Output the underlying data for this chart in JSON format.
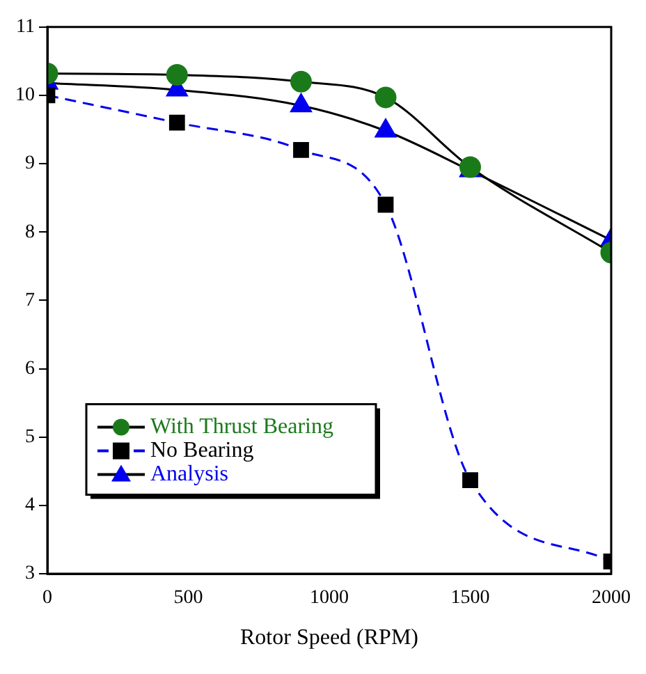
{
  "chart_data": {
    "type": "line",
    "xlabel": "Rotor Speed (RPM)",
    "x": [
      0,
      460,
      900,
      1200,
      1500,
      2000
    ],
    "series": [
      {
        "name": "With Thrust Bearing",
        "color": "#1a7a1a",
        "marker": "circle",
        "line_style": "solid",
        "values": [
          10.32,
          10.3,
          10.2,
          9.97,
          8.95,
          7.7
        ]
      },
      {
        "name": "No Bearing",
        "color": "#000000",
        "marker": "square",
        "line_style": "dashed",
        "values": [
          10.0,
          9.6,
          9.2,
          8.4,
          4.37,
          3.18
        ]
      },
      {
        "name": "Analysis",
        "color": "#0000ee",
        "marker": "triangle",
        "line_style": "solid",
        "values": [
          10.18,
          10.08,
          9.85,
          9.48,
          8.9,
          7.88
        ]
      }
    ],
    "xlim": [
      0,
      2000
    ],
    "xticks": [
      0,
      500,
      1000,
      1500,
      2000
    ],
    "ylim": [
      3,
      11
    ],
    "yticks": [
      3,
      4,
      5,
      6,
      7,
      8,
      9,
      10,
      11
    ],
    "grid": false,
    "legend": "left"
  }
}
